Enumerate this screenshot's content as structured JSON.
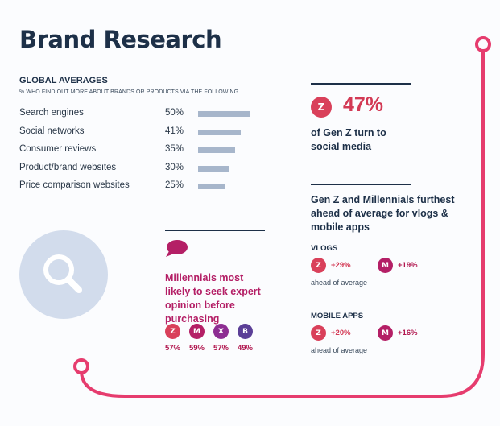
{
  "page": {
    "title": "Brand Research"
  },
  "global": {
    "heading": "GLOBAL AVERAGES",
    "subheading": "% WHO FIND OUT MORE ABOUT BRANDS OR PRODUCTS VIA THE FOLLOWING"
  },
  "chart_data": {
    "type": "bar",
    "orientation": "horizontal",
    "categories": [
      "Search engines",
      "Social networks",
      "Consumer reviews",
      "Product/brand websites",
      "Price comparison websites"
    ],
    "values": [
      50,
      41,
      35,
      30,
      25
    ],
    "value_labels": [
      "50%",
      "41%",
      "35%",
      "30%",
      "25%"
    ],
    "unit": "%",
    "bar_color": "#a7b6cb",
    "grid": false
  },
  "genz_stat": {
    "badge": "Z",
    "percent": "47%",
    "text": "of Gen Z turn to social media"
  },
  "ahead_stat": {
    "text": "Gen Z and Millennials furthest ahead of average for vlogs & mobile apps",
    "vlogs": {
      "label": "VLOGS",
      "z_badge": "Z",
      "z_value": "+29%",
      "m_badge": "M",
      "m_value": "+19%",
      "note": "ahead of average"
    },
    "mobile_apps": {
      "label": "MOBILE APPS",
      "z_badge": "Z",
      "z_value": "+20%",
      "m_badge": "M",
      "m_value": "+16%",
      "note": "ahead of average"
    }
  },
  "millennials": {
    "text": "Millennials most likely to seek expert opinion before purchasing",
    "generations": [
      {
        "badge": "Z",
        "value": "57%"
      },
      {
        "badge": "M",
        "value": "59%"
      },
      {
        "badge": "X",
        "value": "57%"
      },
      {
        "badge": "B",
        "value": "49%"
      }
    ]
  },
  "colors": {
    "genz": "#d9405a",
    "millennial": "#b41f66",
    "genx": "#8d2d92",
    "boomer": "#5b3f97",
    "accent_line": "#e63c6e",
    "title": "#1d3048"
  },
  "icons": {
    "magnifier": "magnifier-icon",
    "speech": "speech-bubble-icon"
  }
}
